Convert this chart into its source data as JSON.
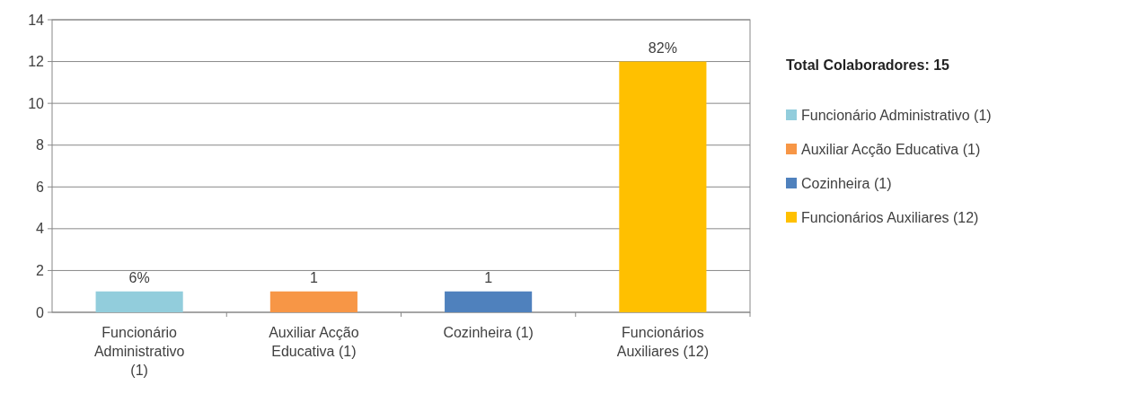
{
  "chart_data": {
    "type": "bar",
    "categories": [
      "Funcionário Administrativo (1)",
      "Auxiliar Acção Educativa (1)",
      "Cozinheira (1)",
      "Funcionários Auxiliares (12)"
    ],
    "series": [
      {
        "name": "Funcionário Administrativo (1)",
        "color": "#92cddc",
        "values": [
          1,
          null,
          null,
          null
        ]
      },
      {
        "name": "Auxiliar Acção Educativa (1)",
        "color": "#f79646",
        "values": [
          null,
          1,
          null,
          null
        ],
        "value_labels": [
          null,
          "1",
          null,
          null
        ]
      },
      {
        "name": "Cozinheira (1)",
        "color": "#4f81bd",
        "values": [
          null,
          null,
          1,
          null
        ],
        "value_labels": [
          null,
          null,
          "1",
          null
        ]
      },
      {
        "name": "Funcionários Auxiliares (12)",
        "color": "#ffc000",
        "values": [
          null,
          null,
          null,
          12
        ]
      }
    ],
    "annotations": [
      {
        "text": "6%",
        "x": "Funcionário Administrativo (1)",
        "y": 1
      },
      {
        "text": "82%",
        "x": "Funcionários Auxiliares (12)",
        "y": 12
      }
    ],
    "ylim": [
      0,
      14
    ],
    "yticks": [
      0,
      2,
      4,
      6,
      8,
      10,
      12,
      14
    ],
    "grid": "y",
    "legend": "right",
    "legend_title": "Total Colaboradores: 15"
  }
}
